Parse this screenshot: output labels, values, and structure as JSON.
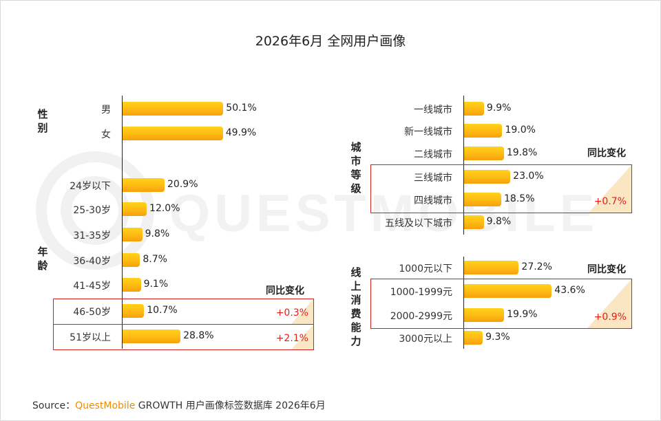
{
  "title": "2026年6月 全网用户画像",
  "source": {
    "prefix": "Source：",
    "brand": "QuestMobile",
    "rest": " GROWTH 用户画像标签数据库 2026年6月"
  },
  "watermark": "QUESTMOBILE",
  "colors": {
    "bar_top": "#ffd21a",
    "bar_bottom": "#f5a10c",
    "highlight": "#d0201a",
    "change_text": "#e0201a"
  },
  "chart_data": [
    {
      "type": "bar",
      "category": "性别",
      "categories": [
        "男",
        "女"
      ],
      "values": [
        50.1,
        49.9
      ],
      "value_labels": [
        "50.1%",
        "49.9%"
      ],
      "xlim": [
        0,
        60
      ]
    },
    {
      "type": "bar",
      "category": "年龄",
      "categories": [
        "24岁以下",
        "25-30岁",
        "31-35岁",
        "36-40岁",
        "41-45岁",
        "46-50岁",
        "51岁以上"
      ],
      "values": [
        20.9,
        12.0,
        9.8,
        8.7,
        9.1,
        10.7,
        28.8
      ],
      "value_labels": [
        "20.9%",
        "12.0%",
        "9.8%",
        "8.7%",
        "9.1%",
        "10.7%",
        "28.8%"
      ],
      "yoy_header": "同比变化",
      "yoy_changes": [
        {
          "category": "46-50岁",
          "change": "+0.3%"
        },
        {
          "category": "51岁以上",
          "change": "+2.1%"
        }
      ],
      "xlim": [
        0,
        60
      ]
    },
    {
      "type": "bar",
      "category": "城市等级",
      "categories": [
        "一线城市",
        "新一线城市",
        "二线城市",
        "三线城市",
        "四线城市",
        "五线及以下城市"
      ],
      "values": [
        9.9,
        19.0,
        19.8,
        23.0,
        18.5,
        9.8
      ],
      "value_labels": [
        "9.9%",
        "19.0%",
        "19.8%",
        "23.0%",
        "18.5%",
        "9.8%"
      ],
      "yoy_header": "同比变化",
      "yoy_changes": [
        {
          "categories": [
            "三线城市",
            "四线城市"
          ],
          "change": "+0.7%"
        }
      ],
      "xlim": [
        0,
        60
      ]
    },
    {
      "type": "bar",
      "category": "线上消费能力",
      "categories": [
        "1000元以下",
        "1000-1999元",
        "2000-2999元",
        "3000元以上"
      ],
      "values": [
        27.2,
        43.6,
        19.9,
        9.3
      ],
      "value_labels": [
        "27.2%",
        "43.6%",
        "19.9%",
        "9.3%"
      ],
      "yoy_header": "同比变化",
      "yoy_changes": [
        {
          "categories": [
            "1000-1999元",
            "2000-2999元"
          ],
          "change": "+0.9%"
        }
      ],
      "xlim": [
        0,
        60
      ]
    }
  ]
}
